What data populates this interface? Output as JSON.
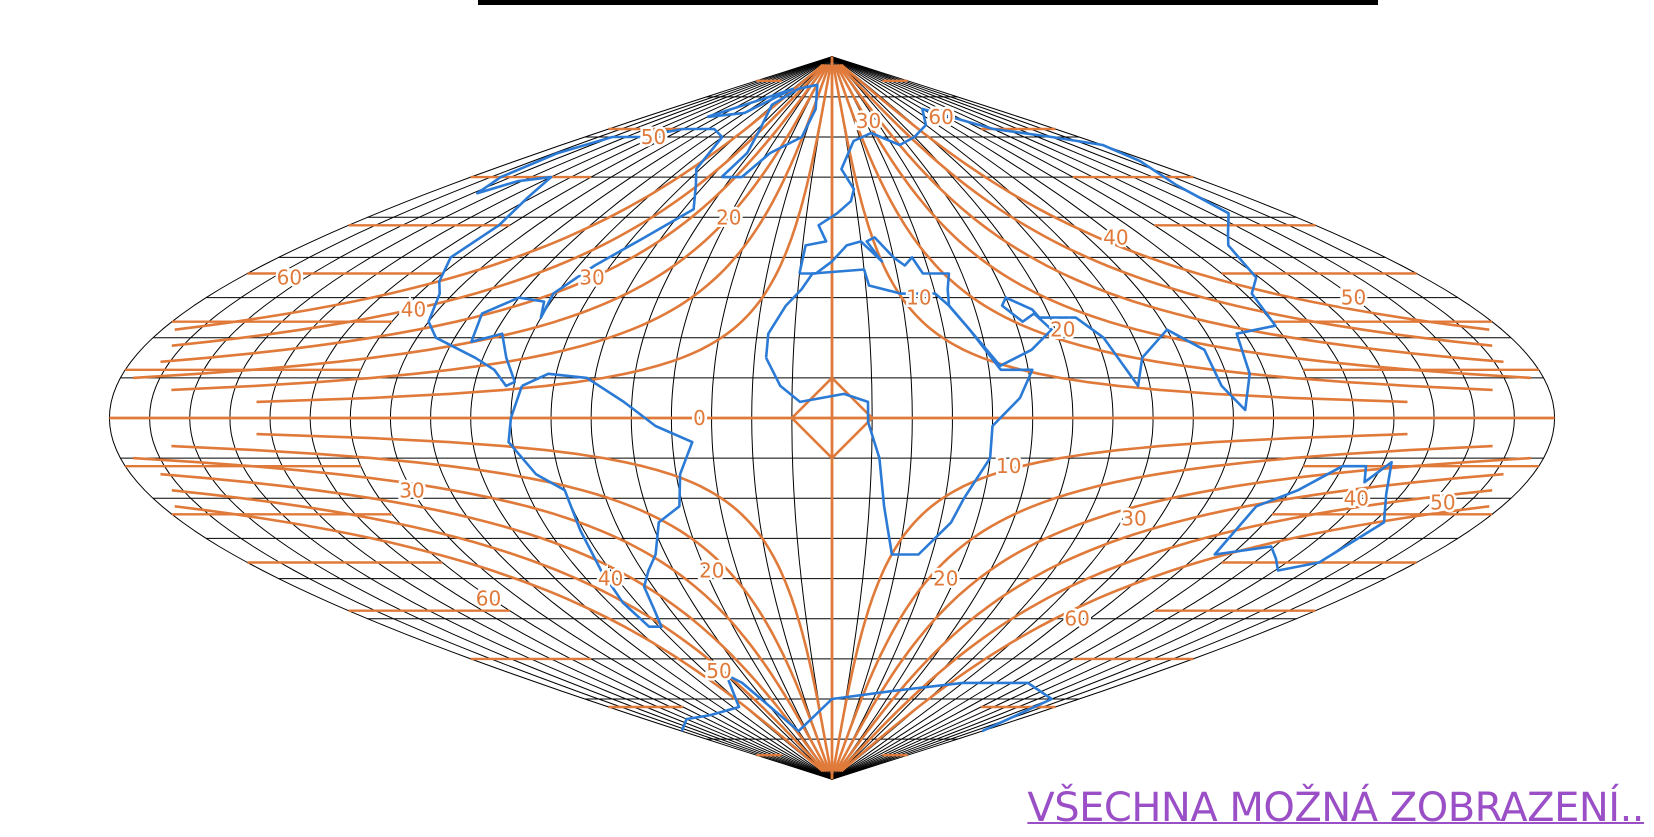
{
  "map": {
    "projection": "sinusoidal",
    "graticule_step_deg": 10,
    "colors": {
      "graticule": "#000000",
      "isolines": "#e07a3a",
      "coastline": "#2b7bd6",
      "link": "#9b4fc7",
      "top_bar": "#000000"
    },
    "distortion_labels": [
      {
        "text": "50",
        "lon": -130,
        "lat": 70
      },
      {
        "text": "60",
        "lon": -165,
        "lat": 35
      },
      {
        "text": "40",
        "lon": -117,
        "lat": 27
      },
      {
        "text": "30",
        "lon": -73,
        "lat": 35
      },
      {
        "text": "20",
        "lon": -40,
        "lat": 50
      },
      {
        "text": "0",
        "lon": -33,
        "lat": 0
      },
      {
        "text": "30",
        "lon": 33,
        "lat": 74
      },
      {
        "text": "60",
        "lon": 105,
        "lat": 75
      },
      {
        "text": "40",
        "lon": 100,
        "lat": 45
      },
      {
        "text": "10",
        "lon": 25,
        "lat": 30
      },
      {
        "text": "20",
        "lon": 62,
        "lat": 22
      },
      {
        "text": "50",
        "lon": 150,
        "lat": 30
      },
      {
        "text": "10",
        "lon": 45,
        "lat": -12
      },
      {
        "text": "30",
        "lon": 83,
        "lat": -25
      },
      {
        "text": "40",
        "lon": 139,
        "lat": -20
      },
      {
        "text": "50",
        "lon": 163,
        "lat": -21
      },
      {
        "text": "30",
        "lon": -110,
        "lat": -18
      },
      {
        "text": "60",
        "lon": -121,
        "lat": -45
      },
      {
        "text": "40",
        "lon": -72,
        "lat": -40
      },
      {
        "text": "20",
        "lon": -38,
        "lat": -38
      },
      {
        "text": "20",
        "lon": 37,
        "lat": -40
      },
      {
        "text": "50",
        "lon": -62,
        "lat": -63
      },
      {
        "text": "60",
        "lon": 95,
        "lat": -50
      }
    ]
  },
  "footer": {
    "link_text": "VŠECHNA MOŽNÁ ZOBRAZENÍ.."
  }
}
